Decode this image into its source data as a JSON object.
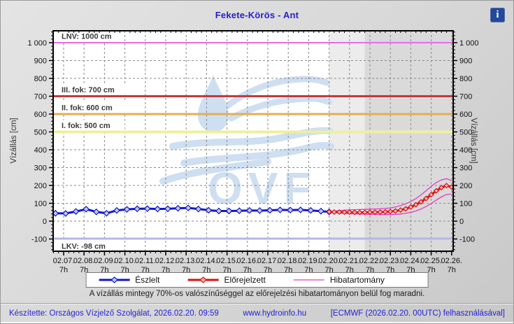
{
  "header": {
    "title": "Fekete-Körös - Ant",
    "info_icon": "i"
  },
  "chart_data": {
    "type": "line",
    "title": "Fekete-Körös - Ant",
    "y_axis": {
      "label_left": "Vízállás [cm]",
      "label_right": "Vízállás [cm]",
      "ticks": [
        {
          "value": -100,
          "label": "-100"
        },
        {
          "value": 0,
          "label": "0"
        },
        {
          "value": 100,
          "label": "100"
        },
        {
          "value": 200,
          "label": "200"
        },
        {
          "value": 300,
          "label": "300"
        },
        {
          "value": 400,
          "label": "400"
        },
        {
          "value": 500,
          "label": "500"
        },
        {
          "value": 600,
          "label": "600"
        },
        {
          "value": 700,
          "label": "700"
        },
        {
          "value": 800,
          "label": "800"
        },
        {
          "value": 900,
          "label": "900"
        },
        {
          "value": 1000,
          "label": "1 000"
        }
      ],
      "minor_step": 20,
      "ylim": [
        -168,
        1066
      ]
    },
    "x_axis": {
      "tick_dates": [
        "02.07.",
        "02.08.",
        "02.09.",
        "02.10.",
        "02.11.",
        "02.12.",
        "02.13.",
        "02.14.",
        "02.15.",
        "02.16.",
        "02.17.",
        "02.18.",
        "02.19.",
        "02.20.",
        "02.21.",
        "02.22.",
        "02.23.",
        "02.24.",
        "02.25.",
        "02.26."
      ],
      "tick_hour": "7h",
      "minor_step_days": 0.25,
      "xlim_days": [
        -0.51,
        19.07
      ]
    },
    "grid": {
      "color": "#8a8a8a",
      "dash": "3,3"
    },
    "shading": [
      {
        "from_t": null,
        "to_t": 13,
        "color": "#ffffff"
      },
      {
        "from_t": 13,
        "to_t": 14.75,
        "color": "#ececec"
      },
      {
        "from_t": 14.75,
        "to_t": null,
        "color": "#dadada"
      }
    ],
    "reference_lines": [
      {
        "label": "LNV: 1000 cm",
        "value": 1000,
        "color": "#e66be6",
        "width": 2,
        "label_side": "above"
      },
      {
        "label": "III. fok: 700 cm",
        "value": 700,
        "color": "#c23a3a",
        "width": 3,
        "label_side": "above"
      },
      {
        "label": "II. fok: 600 cm",
        "value": 600,
        "color": "#e3ae52",
        "width": 3,
        "label_side": "above"
      },
      {
        "label": "I. fok: 500 cm",
        "value": 500,
        "color": "#efef9e",
        "width": 4,
        "label_side": "above"
      },
      {
        "label": "LKV: -98 cm",
        "value": -98,
        "color": "#b6b6e8",
        "width": 3,
        "label_side": "below"
      }
    ],
    "series": {
      "observed": {
        "name": "Észlelt",
        "color": "#1414cc",
        "marker_fill": "#b9cdf0",
        "marker": "diamond",
        "points": [
          [
            -0.4,
            44
          ],
          [
            0.1,
            43
          ],
          [
            0.6,
            54
          ],
          [
            1.1,
            67
          ],
          [
            1.6,
            52
          ],
          [
            2.1,
            44
          ],
          [
            2.6,
            60
          ],
          [
            3.1,
            66
          ],
          [
            3.6,
            69
          ],
          [
            4.1,
            70
          ],
          [
            4.6,
            68
          ],
          [
            5.1,
            69
          ],
          [
            5.6,
            72
          ],
          [
            6.1,
            74
          ],
          [
            6.6,
            68
          ],
          [
            7.1,
            61
          ],
          [
            7.6,
            57
          ],
          [
            8.1,
            57
          ],
          [
            8.6,
            58
          ],
          [
            9.1,
            60
          ],
          [
            9.6,
            59
          ],
          [
            10.1,
            61
          ],
          [
            10.6,
            63
          ],
          [
            11.1,
            62
          ],
          [
            11.6,
            63
          ],
          [
            12.1,
            60
          ],
          [
            12.6,
            56
          ],
          [
            13,
            52
          ]
        ]
      },
      "forecast": {
        "name": "Előrejelzett",
        "color": "#dd1212",
        "marker_fill": "#f6b6b6",
        "marker": "diamond",
        "points": [
          [
            13,
            52
          ],
          [
            13.25,
            51
          ],
          [
            13.5,
            51
          ],
          [
            13.75,
            50
          ],
          [
            14,
            50
          ],
          [
            14.25,
            49
          ],
          [
            14.5,
            49
          ],
          [
            14.75,
            49
          ],
          [
            15,
            50
          ],
          [
            15.25,
            50
          ],
          [
            15.5,
            51
          ],
          [
            15.75,
            52
          ],
          [
            16,
            54
          ],
          [
            16.25,
            57
          ],
          [
            16.5,
            62
          ],
          [
            16.75,
            69
          ],
          [
            17,
            79
          ],
          [
            17.25,
            92
          ],
          [
            17.5,
            108
          ],
          [
            17.75,
            127
          ],
          [
            18,
            148
          ],
          [
            18.25,
            170
          ],
          [
            18.5,
            188
          ],
          [
            18.75,
            199
          ],
          [
            19,
            191
          ]
        ]
      },
      "band_upper": {
        "name": "Hibatartomány felső",
        "color": "#e23ac8",
        "points": [
          [
            13,
            53
          ],
          [
            13.25,
            56
          ],
          [
            13.5,
            59
          ],
          [
            13.75,
            61
          ],
          [
            14,
            63
          ],
          [
            14.25,
            64
          ],
          [
            14.5,
            65
          ],
          [
            14.75,
            66
          ],
          [
            15,
            67
          ],
          [
            15.25,
            68
          ],
          [
            15.5,
            69
          ],
          [
            15.75,
            71
          ],
          [
            16,
            74
          ],
          [
            16.25,
            79
          ],
          [
            16.5,
            87
          ],
          [
            16.75,
            97
          ],
          [
            17,
            110
          ],
          [
            17.25,
            126
          ],
          [
            17.5,
            147
          ],
          [
            17.75,
            170
          ],
          [
            18,
            194
          ],
          [
            18.25,
            216
          ],
          [
            18.5,
            231
          ],
          [
            18.75,
            238
          ],
          [
            19,
            227
          ]
        ]
      },
      "band_lower": {
        "name": "Hibatartomány alsó",
        "color": "#e23ac8",
        "points": [
          [
            13,
            51
          ],
          [
            13.25,
            48
          ],
          [
            13.5,
            45
          ],
          [
            13.75,
            43
          ],
          [
            14,
            42
          ],
          [
            14.25,
            41
          ],
          [
            14.5,
            40
          ],
          [
            14.75,
            39
          ],
          [
            15,
            38
          ],
          [
            15.25,
            38
          ],
          [
            15.5,
            37
          ],
          [
            15.75,
            37
          ],
          [
            16,
            37
          ],
          [
            16.25,
            38
          ],
          [
            16.5,
            40
          ],
          [
            16.75,
            44
          ],
          [
            17,
            49
          ],
          [
            17.25,
            57
          ],
          [
            17.5,
            68
          ],
          [
            17.75,
            82
          ],
          [
            18,
            99
          ],
          [
            18.25,
            118
          ],
          [
            18.5,
            136
          ],
          [
            18.75,
            149
          ],
          [
            19,
            152
          ]
        ]
      }
    },
    "watermark": {
      "text": "OVF",
      "color": "#cfdff2"
    },
    "legend_position": "bottom"
  },
  "legend": {
    "items": [
      {
        "key": "observed",
        "label": "Észlelt"
      },
      {
        "key": "forecast",
        "label": "Előrejelzett"
      },
      {
        "key": "band",
        "label": "Hibatartomány"
      }
    ]
  },
  "note": "A vízállás mintegy 70%-os valószínűséggel az előrejelzési hibatartományon belül fog maradni.",
  "footer": {
    "made_by": "Készítette: Országos Vízjelző Szolgálat, 2026.02.20. 09:59",
    "site": "www.hydroinfo.hu",
    "model": "[ECMWF (2026.02.20. 00UTC) felhasználásával]"
  }
}
